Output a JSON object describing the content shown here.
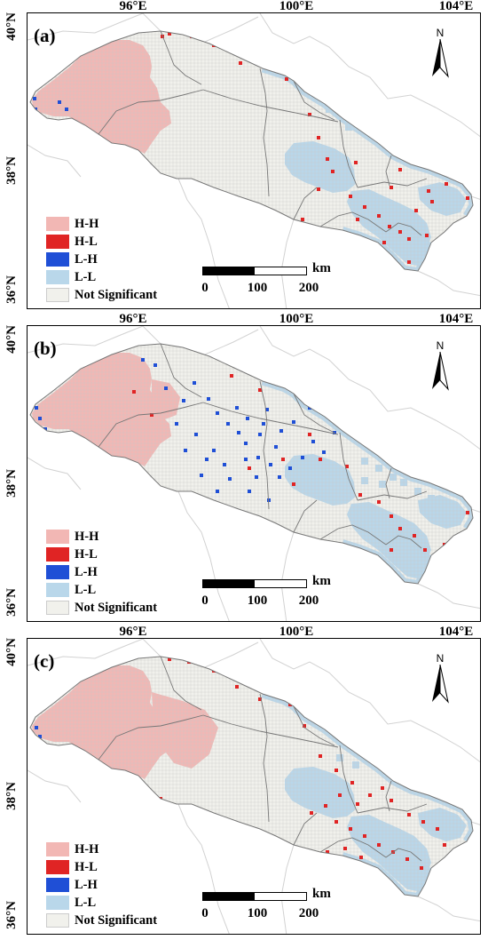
{
  "map": {
    "lon_labels": [
      "96°E",
      "100°E",
      "104°E"
    ],
    "lat_labels": [
      "40°N",
      "38°N",
      "36°N"
    ],
    "north_arrow_label": "N",
    "north_arrow_icon": "north-arrow-icon",
    "scale": {
      "unit": "km",
      "ticks": [
        "0",
        "100",
        "200"
      ]
    },
    "legend": [
      {
        "label": "H-H",
        "color": "#f2b7b4"
      },
      {
        "label": "H-L",
        "color": "#e02424"
      },
      {
        "label": "L-H",
        "color": "#1f4fd6"
      },
      {
        "label": "L-L",
        "color": "#b9d7ea"
      },
      {
        "label": "Not Significant",
        "color": "#f1f1ec"
      }
    ],
    "colors": {
      "grid_line": "#c9c9c9",
      "boundary": "#777777",
      "outer_region": "#d2d2d2"
    }
  },
  "panels": [
    {
      "label": "(a)"
    },
    {
      "label": "(b)"
    },
    {
      "label": "(c)"
    }
  ]
}
